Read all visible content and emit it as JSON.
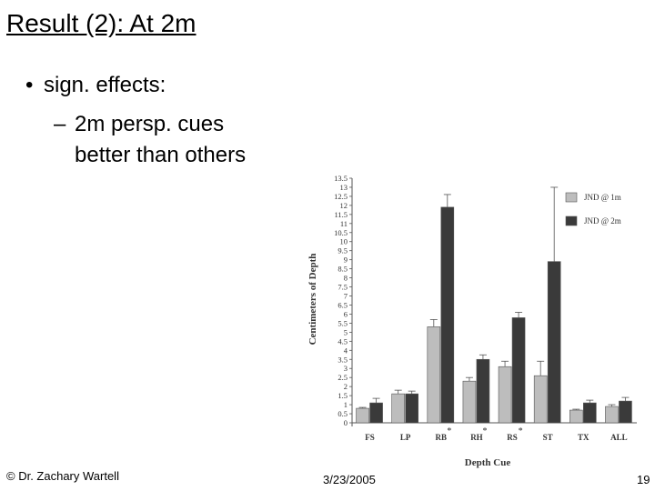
{
  "slide": {
    "title": "Result (2): At 2m",
    "bullet_1": "sign. effects:",
    "bullet_2_line_1": "2m persp. cues",
    "bullet_2_line_2": "better than others",
    "bullet_symbol": "•",
    "dash_symbol": "–"
  },
  "footer": {
    "author": "© Dr. Zachary Wartell",
    "date": "3/23/2005",
    "page": "19"
  },
  "chart_data": {
    "type": "bar",
    "xlabel": "Depth Cue",
    "ylabel": "Centimeters of Depth",
    "ylim": [
      0,
      13.5
    ],
    "yticks": [
      "0",
      "0.5",
      "1",
      "1.5",
      "2",
      "2.5",
      "3",
      "3.5",
      "4",
      "4.5",
      "5",
      "5.5",
      "6",
      "6.5",
      "7",
      "7.5",
      "8",
      "8.5",
      "9",
      "9.5",
      "10",
      "10.5",
      "11",
      "11.5",
      "12",
      "12.5",
      "13",
      "13.5"
    ],
    "categories": [
      "FS",
      "LP",
      "RB",
      "RH",
      "RS",
      "ST",
      "TX",
      "ALL"
    ],
    "significance_marker": "*",
    "significant": [
      false,
      false,
      true,
      true,
      true,
      false,
      false,
      false
    ],
    "legend_position": "top-right",
    "grid": false,
    "series": [
      {
        "name": "JND @ 1m",
        "color": "#bdbdbd",
        "values": [
          0.8,
          1.6,
          5.3,
          2.3,
          3.1,
          2.6,
          0.7,
          0.9
        ],
        "errors": [
          0.05,
          0.2,
          0.4,
          0.2,
          0.3,
          0.8,
          0.05,
          0.1
        ]
      },
      {
        "name": "JND @ 2m",
        "color": "#3a3a3a",
        "values": [
          1.1,
          1.6,
          11.9,
          3.5,
          5.8,
          8.9,
          1.1,
          1.2
        ],
        "errors": [
          0.25,
          0.15,
          0.7,
          0.25,
          0.3,
          4.1,
          0.15,
          0.2
        ]
      }
    ]
  }
}
